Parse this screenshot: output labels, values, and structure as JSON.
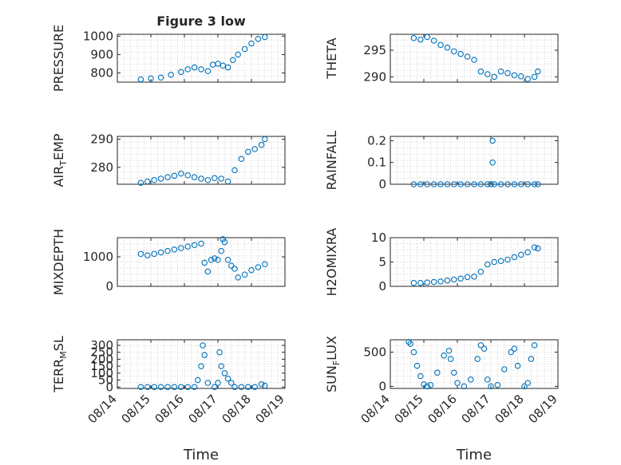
{
  "figure": {
    "title": "Figure 3 low",
    "xlabel": "Time",
    "x_tick_labels": [
      "08/14",
      "08/15",
      "08/16",
      "08/17",
      "08/18",
      "08/19"
    ],
    "marker_color": "#0072BD",
    "grid": "minor-dotted"
  },
  "chart_data": [
    {
      "type": "scatter",
      "name": "pressure",
      "ylabel_main": "PRESSURE",
      "ylabel_sub": "",
      "xlim": [
        0,
        5
      ],
      "ylim": [
        750,
        1010
      ],
      "yticks": [
        800,
        900,
        1000
      ],
      "ytick_labels": [
        "800",
        "900",
        "1000"
      ],
      "x": [
        0.7,
        1.0,
        1.3,
        1.6,
        1.9,
        2.1,
        2.3,
        2.5,
        2.7,
        2.85,
        3.0,
        3.15,
        3.3,
        3.45,
        3.6,
        3.8,
        4.0,
        4.2,
        4.4
      ],
      "y": [
        765,
        770,
        775,
        790,
        805,
        820,
        830,
        820,
        810,
        845,
        850,
        840,
        830,
        870,
        900,
        930,
        960,
        985,
        995
      ]
    },
    {
      "type": "scatter",
      "name": "theta",
      "ylabel_main": "THETA",
      "ylabel_sub": "",
      "xlim": [
        0,
        5
      ],
      "ylim": [
        289,
        298
      ],
      "yticks": [
        290,
        295
      ],
      "ytick_labels": [
        "290",
        "295"
      ],
      "x": [
        0.7,
        0.9,
        1.1,
        1.3,
        1.5,
        1.7,
        1.9,
        2.1,
        2.3,
        2.5,
        2.7,
        2.9,
        3.1,
        3.3,
        3.5,
        3.7,
        3.9,
        4.1,
        4.3,
        4.4
      ],
      "y": [
        297.3,
        297.0,
        297.5,
        296.8,
        296.0,
        295.5,
        294.8,
        294.3,
        293.8,
        293.2,
        291.0,
        290.5,
        290.0,
        291.0,
        290.7,
        290.3,
        290.1,
        289.6,
        290.0,
        291.0
      ]
    },
    {
      "type": "scatter",
      "name": "air_temp",
      "ylabel_main": "AIR",
      "ylabel_sub": "T",
      "ylabel_rest": "EMP",
      "xlim": [
        0,
        5
      ],
      "ylim": [
        274,
        291
      ],
      "yticks": [
        280,
        290
      ],
      "ytick_labels": [
        "280",
        "290"
      ],
      "x": [
        0.7,
        0.9,
        1.1,
        1.3,
        1.5,
        1.7,
        1.9,
        2.1,
        2.3,
        2.5,
        2.7,
        2.9,
        3.1,
        3.3,
        3.5,
        3.7,
        3.9,
        4.1,
        4.3,
        4.4
      ],
      "y": [
        274.5,
        275.0,
        275.5,
        276.0,
        276.5,
        277.0,
        277.8,
        277.2,
        276.5,
        276.0,
        275.5,
        276.2,
        276.0,
        275.0,
        279.0,
        283.0,
        285.5,
        286.5,
        288.0,
        290.0
      ]
    },
    {
      "type": "scatter",
      "name": "rainfall",
      "ylabel_main": "RAINFALL",
      "ylabel_sub": "",
      "xlim": [
        0,
        5
      ],
      "ylim": [
        0,
        0.22
      ],
      "yticks": [
        0,
        0.1,
        0.2
      ],
      "ytick_labels": [
        "0",
        "0.1",
        "0.2"
      ],
      "x": [
        0.7,
        0.9,
        1.1,
        1.3,
        1.5,
        1.7,
        1.9,
        2.1,
        2.3,
        2.5,
        2.7,
        2.9,
        3.0,
        3.05,
        3.05,
        3.1,
        3.3,
        3.5,
        3.7,
        3.9,
        4.1,
        4.3,
        4.4
      ],
      "y": [
        0,
        0,
        0,
        0,
        0,
        0,
        0,
        0,
        0,
        0,
        0,
        0,
        0,
        0.2,
        0.1,
        0,
        0,
        0,
        0,
        0,
        0,
        0,
        0
      ]
    },
    {
      "type": "scatter",
      "name": "mixdepth",
      "ylabel_main": "MIXDEPTH",
      "ylabel_sub": "",
      "xlim": [
        0,
        5
      ],
      "ylim": [
        0,
        1650
      ],
      "yticks": [
        0,
        1000
      ],
      "ytick_labels": [
        "0",
        "1000"
      ],
      "x": [
        0.7,
        0.9,
        1.1,
        1.3,
        1.5,
        1.7,
        1.9,
        2.1,
        2.3,
        2.5,
        2.6,
        2.7,
        2.8,
        2.9,
        3.0,
        3.1,
        3.15,
        3.2,
        3.3,
        3.4,
        3.5,
        3.6,
        3.8,
        4.0,
        4.2,
        4.4
      ],
      "y": [
        1100,
        1050,
        1100,
        1150,
        1200,
        1250,
        1300,
        1350,
        1400,
        1450,
        800,
        500,
        900,
        950,
        900,
        1200,
        1600,
        1500,
        900,
        700,
        600,
        300,
        400,
        550,
        650,
        750
      ]
    },
    {
      "type": "scatter",
      "name": "h2omixra",
      "ylabel_main": "H2OMIXRA",
      "ylabel_sub": "",
      "xlim": [
        0,
        5
      ],
      "ylim": [
        0,
        10
      ],
      "yticks": [
        0,
        5,
        10
      ],
      "ytick_labels": [
        "0",
        "5",
        "10"
      ],
      "x": [
        0.7,
        0.9,
        1.1,
        1.3,
        1.5,
        1.7,
        1.9,
        2.1,
        2.3,
        2.5,
        2.7,
        2.9,
        3.1,
        3.3,
        3.5,
        3.7,
        3.9,
        4.1,
        4.3,
        4.4
      ],
      "y": [
        0.7,
        0.7,
        0.8,
        0.9,
        1.0,
        1.2,
        1.4,
        1.6,
        1.9,
        2.0,
        3.0,
        4.5,
        5.0,
        5.2,
        5.5,
        6.0,
        6.5,
        7.0,
        8.0,
        7.8
      ]
    },
    {
      "type": "scatter",
      "name": "terr_msl",
      "ylabel_main": "TERR",
      "ylabel_sub": "M",
      "ylabel_rest": "SL",
      "xlim": [
        0,
        5
      ],
      "ylim": [
        -10,
        340
      ],
      "yticks": [
        0,
        50,
        100,
        150,
        200,
        250,
        300
      ],
      "ytick_labels": [
        "0",
        "50",
        "100",
        "150",
        "200",
        "250",
        "300"
      ],
      "x": [
        0.7,
        0.9,
        1.1,
        1.3,
        1.5,
        1.7,
        1.9,
        2.1,
        2.3,
        2.4,
        2.5,
        2.55,
        2.6,
        2.7,
        2.9,
        3.0,
        3.05,
        3.1,
        3.2,
        3.3,
        3.4,
        3.5,
        3.7,
        3.9,
        4.1,
        4.3,
        4.4
      ],
      "y": [
        0,
        0,
        0,
        0,
        0,
        0,
        0,
        0,
        0,
        50,
        150,
        300,
        230,
        30,
        0,
        30,
        250,
        150,
        100,
        60,
        30,
        0,
        0,
        0,
        0,
        20,
        10
      ]
    },
    {
      "type": "scatter",
      "name": "sun_flux",
      "ylabel_main": "SUN",
      "ylabel_sub": "F",
      "ylabel_rest": "LUX",
      "xlim": [
        0,
        5
      ],
      "ylim": [
        -30,
        680
      ],
      "yticks": [
        0,
        500
      ],
      "ytick_labels": [
        "0",
        "500"
      ],
      "x": [
        0.55,
        0.6,
        0.7,
        0.8,
        0.9,
        1.0,
        1.1,
        1.2,
        1.4,
        1.6,
        1.75,
        1.8,
        1.9,
        2.0,
        2.2,
        2.4,
        2.6,
        2.7,
        2.8,
        2.9,
        3.0,
        3.2,
        3.4,
        3.6,
        3.7,
        3.8,
        4.0,
        4.1,
        4.2,
        4.3
      ],
      "y": [
        650,
        620,
        500,
        300,
        150,
        30,
        0,
        20,
        200,
        450,
        520,
        400,
        200,
        50,
        0,
        100,
        400,
        600,
        550,
        100,
        0,
        20,
        250,
        500,
        550,
        300,
        0,
        50,
        400,
        600
      ]
    }
  ]
}
